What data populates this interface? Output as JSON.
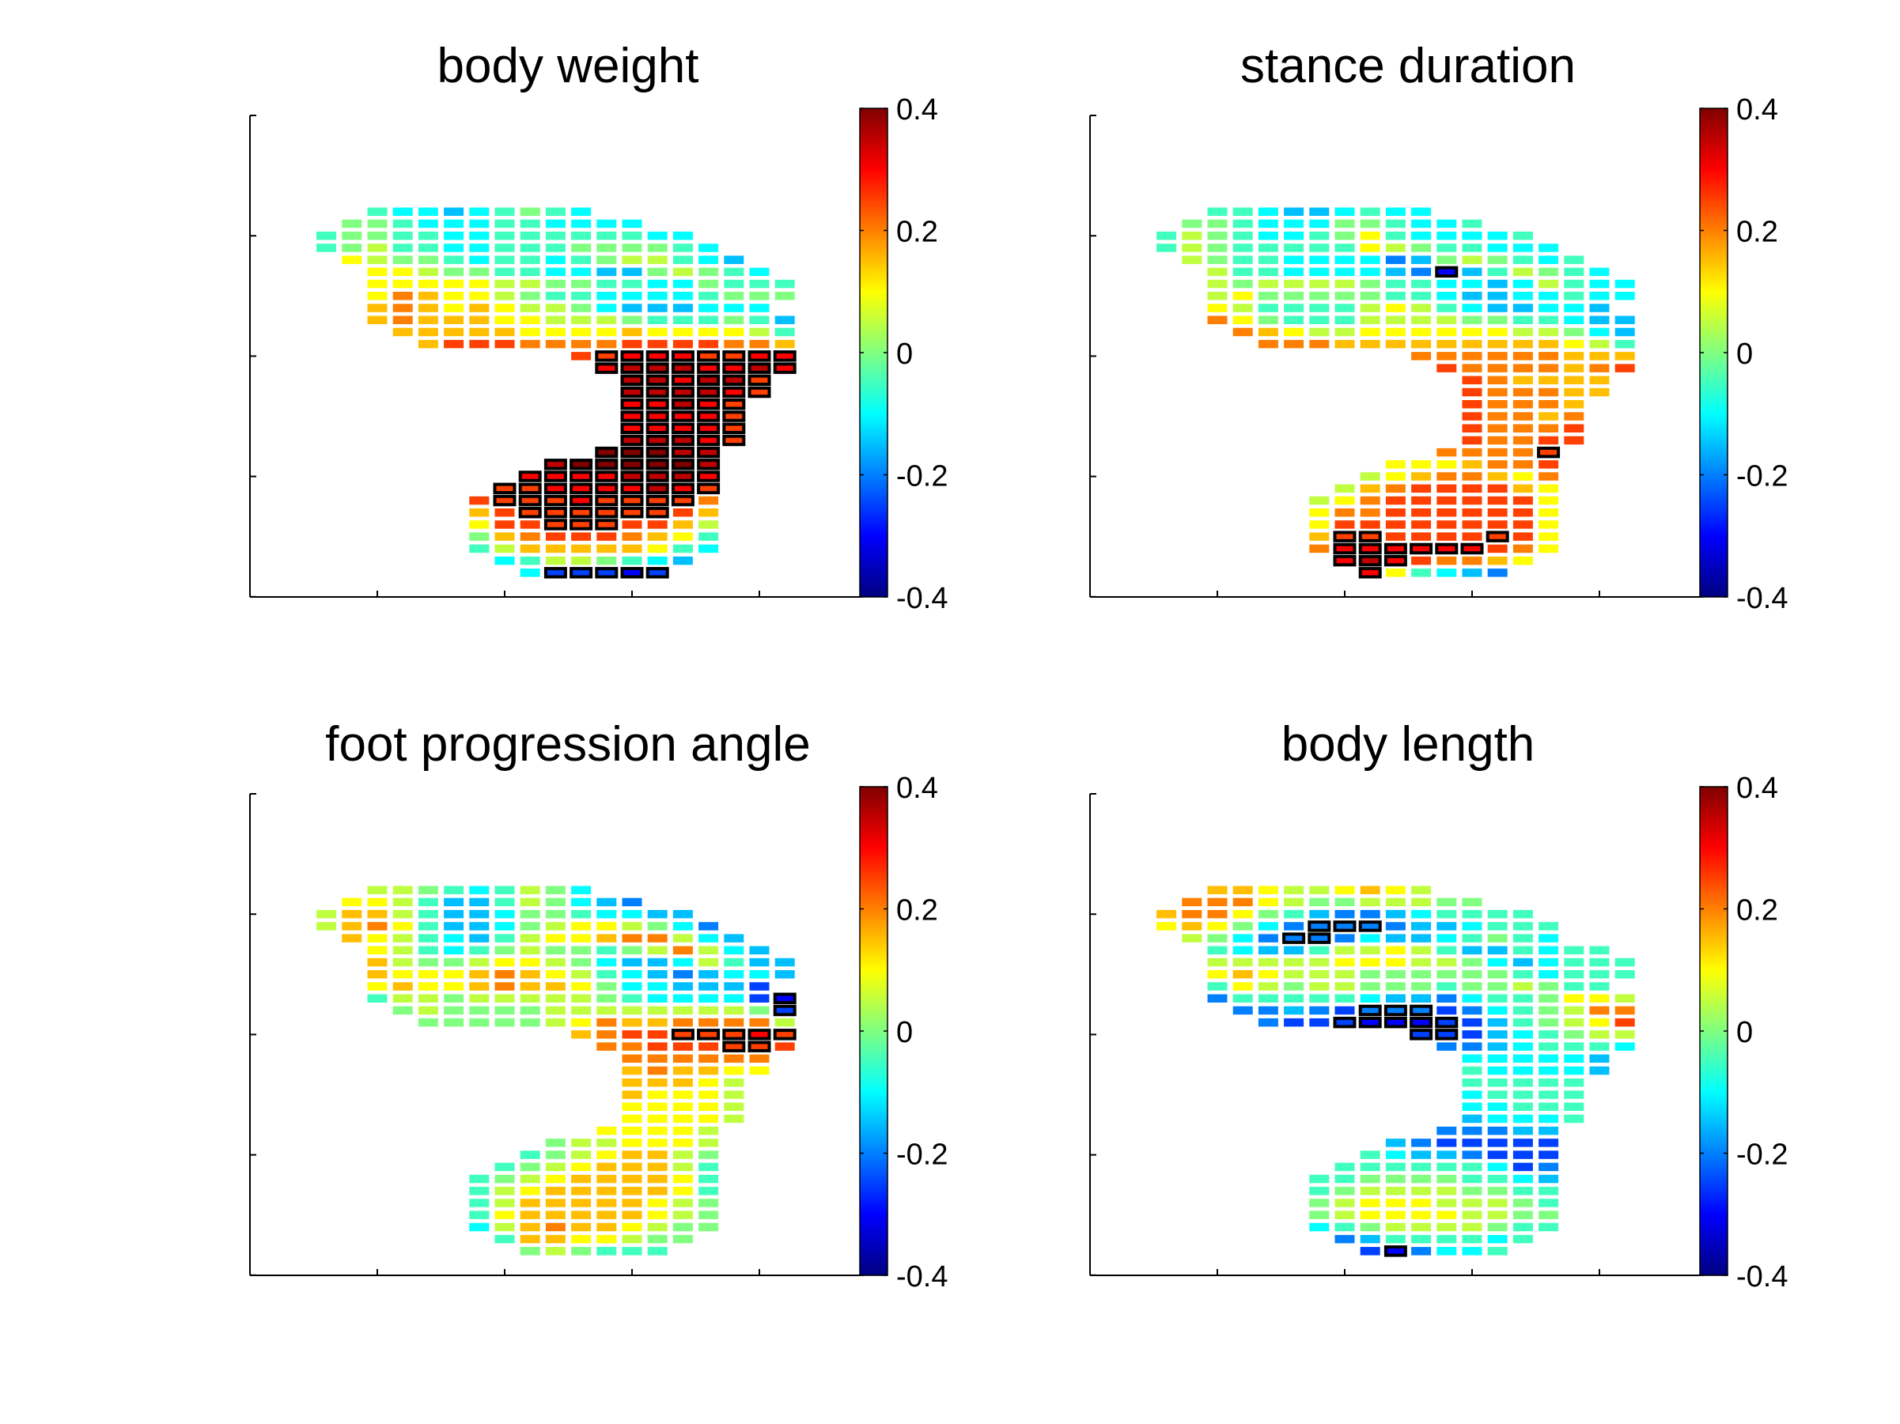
{
  "chart_data": {
    "type": "heatmap",
    "layout": "2x2 grid",
    "colormap": "jet",
    "cell_code": {
      "empty": ".",
      "letters": "abcdefghijklmnopq",
      "min_value": -0.4,
      "step": 0.05,
      "uppercase_means": "significant (outlined)"
    },
    "panels": [
      {
        "title": "body weight",
        "clim": [
          -0.4,
          0.4
        ],
        "colorbar_ticks": [
          "0.4",
          "0.2",
          "0",
          "-0.2",
          "-0.4"
        ],
        "grid": [
          "..hggfghihg........",
          ".iihggghhgggg......",
          "hiihhgghhhhhhgg....",
          "hijhhgghhhiiiihg...",
          ".kjiihghhghijjhgf..",
          "..kkjiihhggffijihg.",
          "..kkkkkjjiihhggihhh",
          "..kmlkkjihhgggghiii",
          "..lmlklkjjigfffggg.",
          "..lmlllkkjjjihhhihf",
          "...lllllkkkklkkkkjh",
          "....lnnnmmmmnnnnmml",
          "..........nNOOONNOO",
          "...........OPPPOOPO",
          "............PPOPPN.",
          "............PPPPON.",
          "............OOPON..",
          "............OOOON..",
          "............OOOON..",
          "............PPPON..",
          "...........QQQPP...",
          ".........PQQQQQP...",
          "........OOOOPPPO...",
          ".......NNOOOOPON...",
          "......nNNNONNNNm...",
          "......lnNNNNNNnl...",
          "......knnNNNnnlj...",
          "......ilmnnnmlkh...",
          "......hjlllllkhg...",
          ".......ghjjihgf....",
          "........gDDDCD....."
        ]
      },
      {
        "title": "stance duration",
        "clim": [
          -0.4,
          0.4
        ],
        "colorbar_ticks": [
          "0.4",
          "0.2",
          "0",
          "-0.2",
          "-0.4"
        ],
        "grid": [
          "..hhgffghgg........",
          ".iihgggiihggh......",
          "hjihgghikhggggh....",
          "hjihhhhhkjihhggg...",
          ".jihhggggefijihgh..",
          "..jhhggggfeCfhjihg.",
          "..jijjjjihhggfgjhgg",
          "..jkiiiiihhgffgghgg",
          "..kjhhhhjkjhgffggf.",
          "..mkihhhjjjjiihhgff",
          "...mlkjjkkkkkkjjigf",
          "....mmmlllllllllkjh",
          "..........mmmmmmlll",
          "...........nmmmmlmn",
          "............nmllll.",
          "............nmmmll.",
          "............nmmml..",
          "............nmmlm..",
          "............nmmmn..",
          "............nmmnn..",
          "...........mmmmN...",
          ".........kkklmmn...",
          "........jklmmlkm...",
          ".......jlmnnnnlk...",
          "......jkmnnnnnnk...",
          "......kmmnnnnnnk...",
          "......knnnnnnnnk...",
          "......lNNnnnnNnk...",
          "......mOOOOOOnmk...",
          ".......OPOnmmlk....",
          "........Okhgfe....."
        ]
      },
      {
        "title": "foot progression angle",
        "clim": [
          -0.4,
          0.4
        ],
        "colorbar_ticks": [
          "0.4",
          "0.2",
          "0",
          "-0.2",
          "-0.4"
        ],
        "grid": [
          "..jjihghjig........",
          ".kkjhffhjigfe......",
          "jlljhffgiihggff....",
          "jlmkhffgijkkjige...",
          ".lkjhgfhjkklmmjgf..",
          "..kjhghijiihijmjgf.",
          "..ljiijkkjigffgjhff",
          "..lkkklmlkjhgfefggf",
          "..klkklmllkiggfffd.",
          "..hjjijjjjjihggggdC",
          "...ijiiiijjjjjjjjiD",
          "....iiiiijkmllmmmmj",
          "..........lmnnNNNON",
          "...........mmnnnNNn",
          "............mmmmmm.",
          "............lmllkk.",
          "............lllkj..",
          "............lkkkj..",
          "............kkkkj..",
          "............kkkkj..",
          "...........kkkkj...",
          ".........ijjkkkj...",
          "........hijkllji...",
          ".......hijkllljh...",
          "......hijkllllkh...",
          "......hjklllllkh...",
          "......hjlllllkji...",
          "......hklllllkji...",
          "......gjlmllkjii...",
          ".......hllkkjii....",
          "........ijihhh....."
        ]
      },
      {
        "title": "body length",
        "clim": [
          -0.4,
          0.4
        ],
        "colorbar_ticks": [
          "0.4",
          "0.2",
          "0",
          "-0.2",
          "-0.4"
        ],
        "grid": [
          "..llkjjklkj........",
          ".mmmkjiijjjii......",
          "lmmkihfeefghhhh....",
          "klkigeEEEeffghhh...",
          ".jigeEEegffghihg..",
          "..hgffhjjkjhffhghh.",
          "..jjjjjkkkjjigfghhh",
          "..klkjjjiiiiiihghhh",
          "..hkjijjiiihiijihh.",
          "..ehhhhhgffeghhikkj",
          "...eefedEEEdeghijmm",
          "....eddDCCCDdfhijkn",
          "..........DDdfghijj",
          "...........eefghhhg",
          "............gggggf.",
          "............hggggf.",
          "............hhhhh..",
          "............ghhhh..",
          "............gghhh..",
          "............fgggh..",
          "...........eeeff...",
          ".........feddddd...",
          "........hgffeddd...",
          ".......hhhhhhgde...",
          "......hhiiiihhgf...",
          "......hijjjjiihh...",
          "......ijkkkjjjih...",
          "......ijkkkkjjii...",
          "......ghijjjjihh...",
          ".......efhhhhgh....",
          "........dCeggh....."
        ]
      }
    ]
  }
}
